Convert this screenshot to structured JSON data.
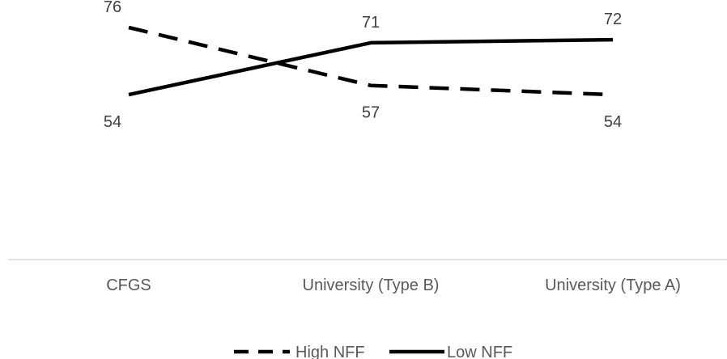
{
  "chart_data": {
    "type": "line",
    "categories": [
      "CFGS",
      "University (Type B)",
      "University (Type A)"
    ],
    "series": [
      {
        "name": "High NFF",
        "values": [
          76,
          57,
          54
        ],
        "style": "dashed",
        "color": "#000000"
      },
      {
        "name": "Low NFF",
        "values": [
          54,
          71,
          72
        ],
        "style": "solid",
        "color": "#000000"
      }
    ],
    "title": "",
    "xlabel": "",
    "ylabel": "",
    "ylim": [
      0,
      85
    ],
    "grid": false,
    "legend_position": "bottom",
    "axis_color": "#d9d9d9"
  }
}
